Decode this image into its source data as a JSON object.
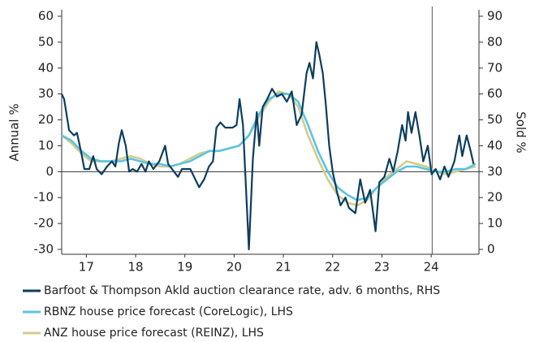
{
  "chart_data": {
    "type": "line",
    "ylabel": "Annual %",
    "y2label": "Sold %",
    "ylim": [
      -30,
      60
    ],
    "yticks": [
      -30,
      -20,
      -10,
      0,
      10,
      20,
      30,
      40,
      50,
      60
    ],
    "y2lim": [
      0,
      90
    ],
    "y2ticks": [
      0,
      10,
      20,
      30,
      40,
      50,
      60,
      70,
      80,
      90
    ],
    "xlim": [
      2017,
      2025.47
    ],
    "xticks": [
      {
        "value": 2017.5,
        "label": "17"
      },
      {
        "value": 2018.5,
        "label": "18"
      },
      {
        "value": 2019.5,
        "label": "19"
      },
      {
        "value": 2020.5,
        "label": "20"
      },
      {
        "value": 2021.5,
        "label": "21"
      },
      {
        "value": 2022.5,
        "label": "22"
      },
      {
        "value": 2023.5,
        "label": "23"
      },
      {
        "value": 2024.5,
        "label": "24"
      }
    ],
    "vline_x": 2024.52,
    "legend": "bottom",
    "series": [
      {
        "name": "Barfoot & Thompson Akld auction clearance rate, adv. 6 months, RHS",
        "color": "#0d3d5e",
        "axis": "y2",
        "x": [
          2017.0,
          2017.05,
          2017.15,
          2017.25,
          2017.31,
          2017.4,
          2017.46,
          2017.56,
          2017.64,
          2017.71,
          2017.81,
          2017.92,
          2018.02,
          2018.09,
          2018.16,
          2018.22,
          2018.3,
          2018.37,
          2018.44,
          2018.53,
          2018.62,
          2018.7,
          2018.77,
          2018.86,
          2018.98,
          2019.1,
          2019.16,
          2019.24,
          2019.36,
          2019.44,
          2019.61,
          2019.79,
          2019.89,
          2019.99,
          2020.07,
          2020.14,
          2020.22,
          2020.32,
          2020.47,
          2020.55,
          2020.61,
          2020.68,
          2020.8,
          2020.88,
          2020.96,
          2021.01,
          2021.08,
          2021.17,
          2021.27,
          2021.37,
          2021.47,
          2021.57,
          2021.67,
          2021.77,
          2021.87,
          2021.97,
          2022.03,
          2022.1,
          2022.17,
          2022.23,
          2022.3,
          2022.36,
          2022.43,
          2022.5,
          2022.59,
          2022.66,
          2022.76,
          2022.83,
          2022.96,
          2023.06,
          2023.16,
          2023.26,
          2023.37,
          2023.45,
          2023.55,
          2023.65,
          2023.73,
          2023.82,
          2023.91,
          2023.98,
          2024.03,
          2024.1,
          2024.18,
          2024.26,
          2024.34,
          2024.43,
          2024.51,
          2024.59,
          2024.68,
          2024.77,
          2024.85,
          2024.97,
          2025.07,
          2025.13,
          2025.22,
          2025.3,
          2025.36
        ],
        "values": [
          60,
          58,
          46,
          44,
          45,
          37,
          31,
          31,
          36,
          31,
          29,
          32,
          34,
          32,
          41,
          46,
          40,
          30,
          31,
          30,
          33,
          30,
          34,
          31,
          34,
          40,
          33,
          31,
          28,
          31,
          31,
          24,
          27,
          32,
          34,
          47,
          49,
          47,
          47,
          48,
          58,
          48,
          0,
          35,
          53,
          40,
          55,
          58,
          62,
          59,
          60,
          57,
          61,
          48,
          52,
          68,
          72,
          66,
          80,
          75,
          68,
          56,
          40,
          30,
          22,
          17,
          20,
          16,
          14,
          27,
          18,
          23,
          7,
          26,
          28,
          35,
          30,
          38,
          48,
          42,
          53,
          45,
          53,
          44,
          34,
          40,
          29,
          31,
          27,
          32,
          28,
          34,
          44,
          36,
          44,
          38,
          33
        ]
      },
      {
        "name": "RBNZ house price forecast (CoreLogic), LHS",
        "color": "#5bc3e3",
        "x": [
          2017.0,
          2017.2,
          2017.4,
          2017.6,
          2017.8,
          2018.0,
          2018.2,
          2018.4,
          2018.6,
          2018.8,
          2019.0,
          2019.2,
          2019.4,
          2019.6,
          2019.8,
          2020.0,
          2020.2,
          2020.4,
          2020.6,
          2020.8,
          2021.0,
          2021.2,
          2021.4,
          2021.6,
          2021.8,
          2022.0,
          2022.2,
          2022.4,
          2022.6,
          2022.8,
          2023.0,
          2023.2,
          2023.4,
          2023.6,
          2023.8,
          2024.0,
          2024.2,
          2024.4,
          2024.6,
          2024.8,
          2025.0,
          2025.2,
          2025.4
        ],
        "values": [
          14,
          12,
          8,
          5,
          4,
          4,
          4,
          5,
          4,
          3,
          3,
          2,
          3,
          4,
          6,
          8,
          8,
          9,
          10,
          14,
          22,
          28,
          30,
          30,
          27,
          18,
          8,
          0,
          -6,
          -9,
          -11,
          -10,
          -6,
          -3,
          0,
          2,
          2,
          1,
          0,
          0,
          1,
          1,
          3
        ]
      },
      {
        "name": "ANZ house price forecast (REINZ), LHS",
        "color": "#d3cc8c",
        "x": [
          2017.0,
          2017.2,
          2017.4,
          2017.6,
          2017.8,
          2018.0,
          2018.2,
          2018.4,
          2018.6,
          2018.8,
          2019.0,
          2019.2,
          2019.4,
          2019.6,
          2019.8,
          2020.0,
          2020.2,
          2020.4,
          2020.6,
          2020.8,
          2021.0,
          2021.2,
          2021.4,
          2021.6,
          2021.8,
          2022.0,
          2022.2,
          2022.4,
          2022.6,
          2022.8,
          2023.0,
          2023.2,
          2023.4,
          2023.6,
          2023.8,
          2024.0,
          2024.2,
          2024.4,
          2024.6,
          2024.8,
          2025.0,
          2025.2,
          2025.4
        ],
        "values": [
          14,
          11,
          7,
          4,
          4,
          4,
          5,
          6,
          5,
          3,
          2,
          2,
          3,
          5,
          7,
          8,
          8,
          9,
          10,
          14,
          21,
          27,
          31,
          30,
          25,
          14,
          5,
          -3,
          -9,
          -12,
          -13,
          -11,
          -6,
          -2,
          1,
          4,
          3,
          2,
          0,
          -1,
          0,
          1,
          2
        ]
      }
    ]
  }
}
